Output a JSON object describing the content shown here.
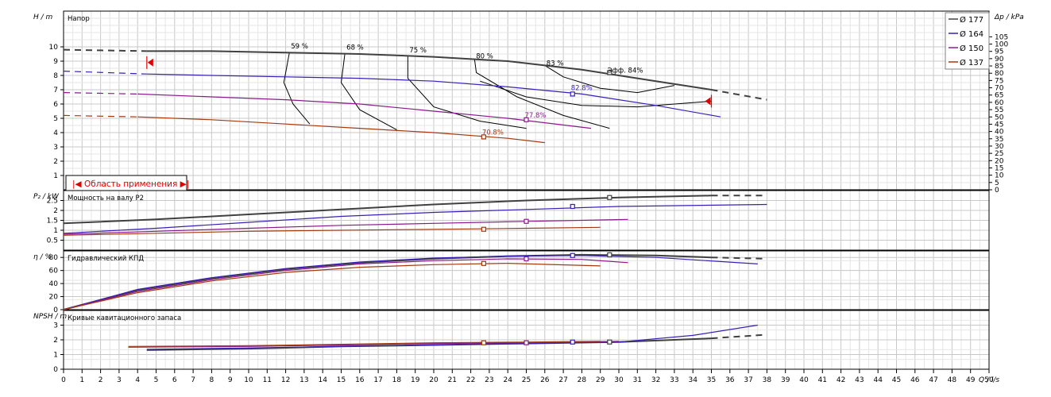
{
  "chart_data": {
    "type": "line",
    "x_axis": {
      "label": "Q / l/s",
      "range": [
        0,
        40
      ],
      "ticks": [
        "0",
        "1",
        "2",
        "3",
        "4",
        "5",
        "6",
        "7",
        "8",
        "9",
        "10",
        "11",
        "12",
        "13",
        "14",
        "15",
        "16",
        "17",
        "18",
        "19",
        "20",
        "21",
        "22",
        "23",
        "24",
        "25",
        "26",
        "27",
        "28",
        "29",
        "30",
        "31",
        "32",
        "33",
        "34",
        "35",
        "36",
        "37",
        "38",
        "39",
        "40",
        "41",
        "42",
        "43",
        "44",
        "45",
        "46",
        "47",
        "48",
        "49",
        "50"
      ]
    },
    "legend": {
      "placement": "top-right",
      "items": [
        {
          "label": "Ø 177",
          "color": "#404040"
        },
        {
          "label": "Ø 164",
          "color": "#3a1fb5"
        },
        {
          "label": "Ø 150",
          "color": "#8a1a8a"
        },
        {
          "label": "Ø 137",
          "color": "#a23a10"
        }
      ]
    },
    "application_range_label": "|◀ Область применения ▶|",
    "panels": [
      {
        "id": "head",
        "title": "Напор",
        "ylabel": "H / m",
        "ylim": [
          0,
          12.5
        ],
        "yticks": [
          "1",
          "2",
          "3",
          "4",
          "5",
          "6",
          "7",
          "8",
          "9",
          "10"
        ],
        "secondary_axis": {
          "label": "Δp / kPa",
          "ticks": [
            "0",
            "5",
            "10",
            "15",
            "20",
            "25",
            "30",
            "35",
            "40",
            "45",
            "50",
            "55",
            "60",
            "65",
            "70",
            "75",
            "80",
            "85",
            "90",
            "95",
            "100",
            "105"
          ]
        },
        "series": [
          {
            "name": "Ø 177",
            "color": "#404040",
            "x": [
              4.5,
              8,
              12,
              16,
              20,
              24,
              28,
              32,
              35
            ],
            "y": [
              9.7,
              9.7,
              9.6,
              9.5,
              9.3,
              9.0,
              8.4,
              7.6,
              7.0
            ],
            "dashed_before": {
              "x": [
                0,
                4.5
              ],
              "y": [
                9.8,
                9.7
              ]
            },
            "dashed_after": {
              "x": [
                35,
                38
              ],
              "y": [
                7.0,
                6.3
              ]
            }
          },
          {
            "name": "Ø 164",
            "color": "#3a1fb5",
            "x": [
              4.5,
              8,
              12,
              16,
              20,
              24,
              28,
              32,
              35.5
            ],
            "y": [
              8.1,
              8.0,
              7.9,
              7.8,
              7.6,
              7.2,
              6.7,
              5.9,
              5.1
            ],
            "dashed_before": {
              "x": [
                0,
                4.5
              ],
              "y": [
                8.3,
                8.1
              ]
            }
          },
          {
            "name": "Ø 150",
            "color": "#8a1a8a",
            "x": [
              4,
              8,
              12,
              16,
              20,
              24,
              28.5
            ],
            "y": [
              6.7,
              6.5,
              6.3,
              6.0,
              5.5,
              5.0,
              4.3
            ],
            "dashed_before": {
              "x": [
                0,
                4
              ],
              "y": [
                6.8,
                6.7
              ]
            }
          },
          {
            "name": "Ø 137",
            "color": "#a23a10",
            "x": [
              4,
              8,
              12,
              16,
              20,
              24,
              26
            ],
            "y": [
              5.1,
              4.9,
              4.6,
              4.3,
              4.0,
              3.6,
              3.3
            ],
            "dashed_before": {
              "x": [
                0,
                4
              ],
              "y": [
                5.2,
                5.1
              ]
            }
          }
        ],
        "iso_efficiency_labels": [
          {
            "text": "59 %",
            "x": 12.2,
            "y": 9.9
          },
          {
            "text": "68 %",
            "x": 15.2,
            "y": 9.8
          },
          {
            "text": "75 %",
            "x": 18.6,
            "y": 9.6
          },
          {
            "text": "80 %",
            "x": 22.2,
            "y": 9.2
          },
          {
            "text": "83 %",
            "x": 26.0,
            "y": 8.7
          },
          {
            "text": "Эфф. 84%",
            "x": 29.3,
            "y": 8.2
          }
        ],
        "iso_efficiency_curves": [
          {
            "x": [
              12.2,
              11.9,
              12.4,
              13.3
            ],
            "y": [
              9.6,
              7.5,
              6.0,
              4.6
            ]
          },
          {
            "x": [
              15.2,
              15.0,
              16.0,
              18.0
            ],
            "y": [
              9.55,
              7.5,
              5.6,
              4.2
            ]
          },
          {
            "x": [
              18.6,
              18.6,
              20.0,
              22.5,
              25.0
            ],
            "y": [
              9.35,
              7.8,
              5.8,
              4.8,
              4.3
            ]
          },
          {
            "x": [
              22.2,
              22.3,
              24.5,
              27.0,
              29.5
            ],
            "y": [
              9.15,
              8.2,
              6.5,
              5.2,
              4.3
            ]
          },
          {
            "x": [
              26.0,
              27.0,
              29.0,
              31.0,
              33.0
            ],
            "y": [
              8.7,
              7.9,
              7.1,
              6.8,
              7.3
            ]
          },
          {
            "x": [
              22.5,
              25.0,
              28.0,
              31.0,
              34.0,
              35.0
            ],
            "y": [
              7.6,
              6.5,
              5.9,
              5.8,
              6.1,
              6.2
            ]
          }
        ],
        "point_labels": [
          {
            "text": "82.8%",
            "x": 27.5,
            "y": 6.8,
            "color": "#3a1fb5"
          },
          {
            "text": "77.8%",
            "x": 25.0,
            "y": 4.9,
            "color": "#8a1a8a"
          },
          {
            "text": "70.8%",
            "x": 22.7,
            "y": 3.7,
            "color": "#a23a10"
          }
        ],
        "markers": [
          {
            "x": 29.5,
            "y": 8.2,
            "color": "#404040"
          },
          {
            "x": 27.5,
            "y": 6.7,
            "color": "#3a1fb5"
          },
          {
            "x": 25.0,
            "y": 4.9,
            "color": "#8a1a8a"
          },
          {
            "x": 22.7,
            "y": 3.7,
            "color": "#a23a10"
          }
        ],
        "range_arrows": [
          {
            "direction": "left",
            "x": 4.5,
            "y": 8.9,
            "color": "#e00000"
          },
          {
            "direction": "right",
            "x": 35.0,
            "y": 6.2,
            "color": "#e00000"
          }
        ]
      },
      {
        "id": "power",
        "title": "Мощность на валу P2",
        "ylabel": "P₂ / kW",
        "ylim": [
          0,
          3
        ],
        "yticks": [
          "0.5",
          "1",
          "1.5",
          "2",
          "2.5"
        ],
        "series": [
          {
            "name": "Ø 177",
            "color": "#404040",
            "x": [
              0,
              5,
              10,
              15,
              20,
              25,
              30,
              35
            ],
            "y": [
              1.35,
              1.55,
              1.8,
              2.05,
              2.3,
              2.5,
              2.65,
              2.75
            ],
            "dashed_after": {
              "x": [
                35,
                38
              ],
              "y": [
                2.75,
                2.75
              ]
            }
          },
          {
            "name": "Ø 164",
            "color": "#3a1fb5",
            "x": [
              0,
              5,
              10,
              15,
              20,
              25,
              30,
              38
            ],
            "y": [
              0.85,
              1.1,
              1.4,
              1.7,
              1.9,
              2.05,
              2.2,
              2.3
            ]
          },
          {
            "name": "Ø 150",
            "color": "#8a1a8a",
            "x": [
              0,
              5,
              10,
              15,
              20,
              25,
              30.5
            ],
            "y": [
              0.8,
              0.95,
              1.1,
              1.25,
              1.35,
              1.45,
              1.55
            ]
          },
          {
            "name": "Ø 137",
            "color": "#a23a10",
            "x": [
              0,
              5,
              10,
              15,
              20,
              25,
              29
            ],
            "y": [
              0.75,
              0.85,
              0.95,
              1.0,
              1.05,
              1.1,
              1.15
            ]
          }
        ],
        "markers": [
          {
            "x": 29.5,
            "y": 2.65,
            "color": "#404040"
          },
          {
            "x": 27.5,
            "y": 2.2,
            "color": "#3a1fb5"
          },
          {
            "x": 25.0,
            "y": 1.45,
            "color": "#8a1a8a"
          },
          {
            "x": 22.7,
            "y": 1.05,
            "color": "#a23a10"
          }
        ]
      },
      {
        "id": "efficiency",
        "title": "Гидравлический КПД",
        "ylabel": "η / %",
        "ylim": [
          0,
          90
        ],
        "yticks": [
          "0",
          "20",
          "40",
          "60",
          "80"
        ],
        "series": [
          {
            "name": "Ø 177",
            "color": "#404040",
            "x": [
              0,
              4,
              8,
              12,
              16,
              20,
              24,
              28,
              32,
              35
            ],
            "y": [
              0,
              30,
              48,
              62,
              72,
              78,
              82,
              84,
              83,
              80
            ],
            "dashed_after": {
              "x": [
                35,
                38
              ],
              "y": [
                80,
                78
              ]
            }
          },
          {
            "name": "Ø 164",
            "color": "#3a1fb5",
            "x": [
              0,
              4,
              8,
              12,
              16,
              20,
              24,
              28,
              32,
              37.5
            ],
            "y": [
              0,
              31,
              49,
              63,
              73,
              79,
              82,
              83,
              80,
              70
            ]
          },
          {
            "name": "Ø 150",
            "color": "#8a1a8a",
            "x": [
              0,
              4,
              8,
              12,
              16,
              20,
              24,
              28,
              30.5
            ],
            "y": [
              0,
              28,
              46,
              60,
              70,
              75,
              77.8,
              77,
              72
            ]
          },
          {
            "name": "Ø 137",
            "color": "#a23a10",
            "x": [
              0,
              4,
              8,
              12,
              16,
              20,
              24,
              29
            ],
            "y": [
              0,
              26,
              44,
              57,
              65,
              69,
              71,
              67
            ]
          }
        ],
        "markers": [
          {
            "x": 29.5,
            "y": 84,
            "color": "#404040"
          },
          {
            "x": 27.5,
            "y": 83,
            "color": "#3a1fb5"
          },
          {
            "x": 25.0,
            "y": 77.8,
            "color": "#8a1a8a"
          },
          {
            "x": 22.7,
            "y": 70.8,
            "color": "#a23a10"
          }
        ]
      },
      {
        "id": "npsh",
        "title": "Кривые кавитационного запаса",
        "ylabel": "NPSH / m",
        "ylim": [
          0,
          4
        ],
        "yticks": [
          "0",
          "1",
          "2",
          "3"
        ],
        "series": [
          {
            "name": "Ø 177",
            "color": "#404040",
            "x": [
              4.5,
              10,
              15,
              20,
              25,
              30,
              35
            ],
            "y": [
              1.3,
              1.4,
              1.55,
              1.65,
              1.75,
              1.85,
              2.1
            ],
            "dashed_after": {
              "x": [
                35,
                38
              ],
              "y": [
                2.1,
                2.35
              ]
            }
          },
          {
            "name": "Ø 164",
            "color": "#3a1fb5",
            "x": [
              4.5,
              10,
              15,
              20,
              25,
              30,
              34,
              37.5
            ],
            "y": [
              1.35,
              1.45,
              1.55,
              1.65,
              1.75,
              1.85,
              2.3,
              3.0
            ]
          },
          {
            "name": "Ø 150",
            "color": "#8a1a8a",
            "x": [
              3.5,
              10,
              15,
              20,
              25,
              30
            ],
            "y": [
              1.5,
              1.55,
              1.65,
              1.75,
              1.8,
              1.9
            ]
          },
          {
            "name": "Ø 137",
            "color": "#a23a10",
            "x": [
              3.5,
              10,
              15,
              20,
              25,
              29
            ],
            "y": [
              1.55,
              1.6,
              1.7,
              1.8,
              1.85,
              1.9
            ]
          }
        ],
        "markers": [
          {
            "x": 29.5,
            "y": 1.85,
            "color": "#404040"
          },
          {
            "x": 27.5,
            "y": 1.85,
            "color": "#3a1fb5"
          },
          {
            "x": 25.0,
            "y": 1.8,
            "color": "#8a1a8a"
          },
          {
            "x": 22.7,
            "y": 1.8,
            "color": "#a23a10"
          }
        ]
      }
    ]
  }
}
